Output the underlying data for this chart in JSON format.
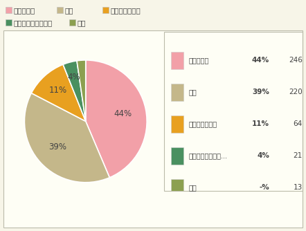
{
  "labels": [
    "とても好き",
    "好き",
    "どちらでもない",
    "あまり好きではない",
    "嫌い"
  ],
  "values": [
    246,
    220,
    64,
    21,
    13
  ],
  "colors": [
    "#F2A0A8",
    "#C4B78A",
    "#E8A020",
    "#4A9060",
    "#8CA050"
  ],
  "legend_short_labels": [
    "とても好き",
    "好き",
    "どちらでもない",
    "あまり好きではな...",
    "嫌い"
  ],
  "legend_pcts": [
    "44%",
    "39%",
    "11%",
    "4%",
    "-%"
  ],
  "legend_counts": [
    246,
    220,
    64,
    21,
    13
  ],
  "top_row1_labels": [
    "とても好き",
    "好き",
    "どちらでもない"
  ],
  "top_row2_labels": [
    "あまり好きではない",
    "嫌い"
  ],
  "pie_labels": [
    "44%",
    "39%",
    "11%",
    "4%",
    ""
  ],
  "pie_label_offsets": [
    0.62,
    0.62,
    0.68,
    0.75,
    0.75
  ],
  "startangle": 90,
  "bg_color": "#F7F5E8",
  "chart_bg": "#FEFEF5",
  "legend_bg": "#FFFFFF",
  "border_color": "#BBBBAA"
}
